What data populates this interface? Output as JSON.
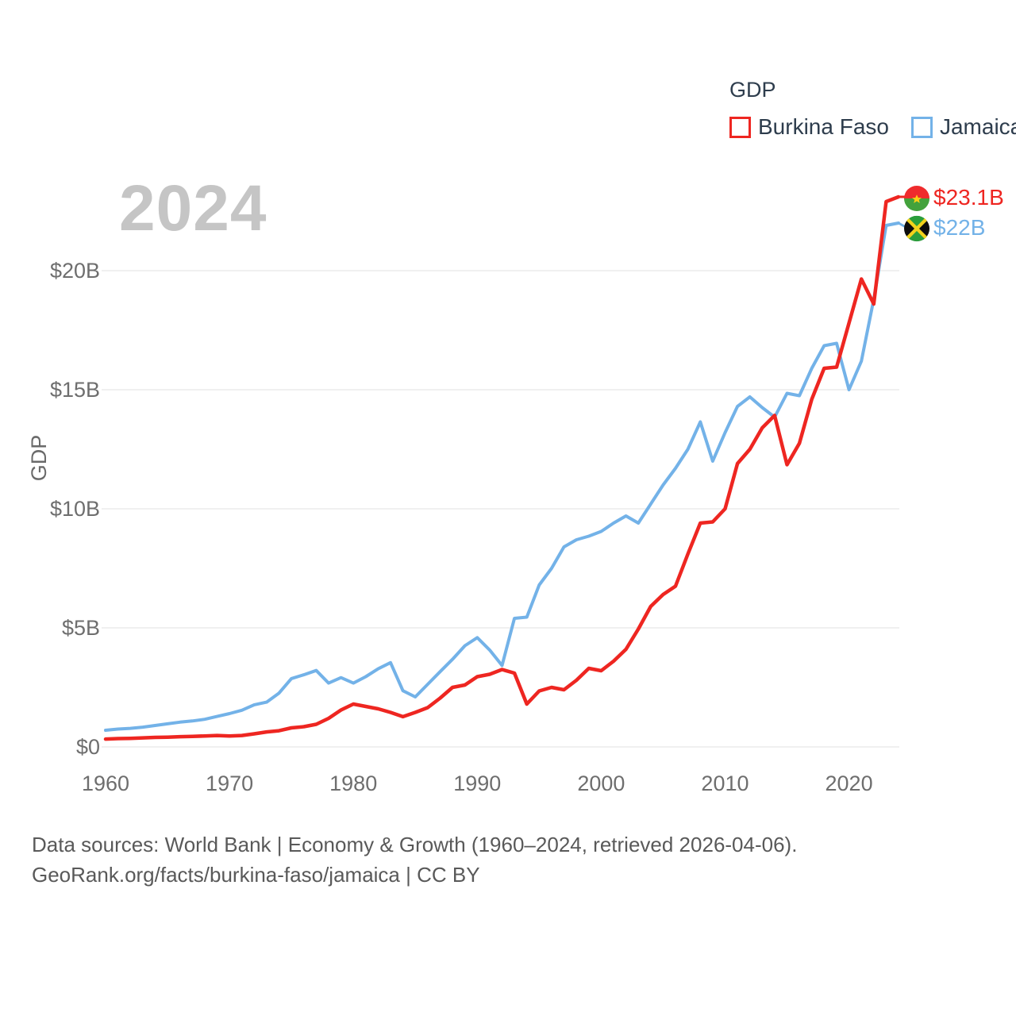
{
  "watermark": {
    "text": "2024"
  },
  "legend": {
    "title": "GDP",
    "items": [
      {
        "label": "Burkina Faso",
        "color": "#ee2621"
      },
      {
        "label": "Jamaica",
        "color": "#73b2e8"
      }
    ]
  },
  "end_labels": [
    {
      "series": "Burkina Faso",
      "label": "$23.1B",
      "color": "#ee2621",
      "flag": "burkina-faso-flag"
    },
    {
      "series": "Jamaica",
      "label": "$22B",
      "color": "#73b2e8",
      "flag": "jamaica-flag"
    }
  ],
  "footer": {
    "line1": "Data sources: World Bank | Economy & Growth (1960–2024, retrieved 2026-04-06).",
    "line2": "GeoRank.org/facts/burkina-faso/jamaica | CC BY"
  },
  "chart_data": {
    "type": "line",
    "title": "GDP",
    "ylabel": "GDP",
    "xlabel": "",
    "xlim": [
      1960,
      2024
    ],
    "ylim": [
      0,
      23.5
    ],
    "grid": "horizontal",
    "legend_position": "top-right",
    "x_ticks": [
      1960,
      1970,
      1980,
      1990,
      2000,
      2010,
      2020
    ],
    "y_ticks": [
      {
        "value": 0,
        "label": "$0"
      },
      {
        "value": 5,
        "label": "$5B"
      },
      {
        "value": 10,
        "label": "$10B"
      },
      {
        "value": 15,
        "label": "$15B"
      },
      {
        "value": 20,
        "label": "$20B"
      }
    ],
    "x": [
      1960,
      1961,
      1962,
      1963,
      1964,
      1965,
      1966,
      1967,
      1968,
      1969,
      1970,
      1971,
      1972,
      1973,
      1974,
      1975,
      1976,
      1977,
      1978,
      1979,
      1980,
      1981,
      1982,
      1983,
      1984,
      1985,
      1986,
      1987,
      1988,
      1989,
      1990,
      1991,
      1992,
      1993,
      1994,
      1995,
      1996,
      1997,
      1998,
      1999,
      2000,
      2001,
      2002,
      2003,
      2004,
      2005,
      2006,
      2007,
      2008,
      2009,
      2010,
      2011,
      2012,
      2013,
      2014,
      2015,
      2016,
      2017,
      2018,
      2019,
      2020,
      2021,
      2022,
      2023,
      2024
    ],
    "series": [
      {
        "name": "Burkina Faso",
        "color": "#ee2621",
        "unit": "billion USD",
        "final_value_label": "$23.1B",
        "values": [
          0.33,
          0.35,
          0.36,
          0.38,
          0.4,
          0.41,
          0.43,
          0.44,
          0.46,
          0.48,
          0.46,
          0.48,
          0.55,
          0.63,
          0.68,
          0.8,
          0.85,
          0.95,
          1.2,
          1.55,
          1.8,
          1.7,
          1.6,
          1.45,
          1.27,
          1.45,
          1.65,
          2.05,
          2.5,
          2.6,
          2.95,
          3.05,
          3.25,
          3.1,
          1.8,
          2.35,
          2.5,
          2.4,
          2.8,
          3.3,
          3.2,
          3.6,
          4.1,
          4.95,
          5.9,
          6.4,
          6.75,
          8.1,
          9.4,
          9.45,
          10.0,
          11.9,
          12.5,
          13.4,
          13.92,
          11.85,
          12.75,
          14.6,
          15.9,
          15.95,
          17.8,
          19.65,
          18.6,
          22.9,
          23.1
        ]
      },
      {
        "name": "Jamaica",
        "color": "#73b2e8",
        "unit": "billion USD",
        "final_value_label": "$22B",
        "values": [
          0.7,
          0.75,
          0.78,
          0.83,
          0.9,
          0.97,
          1.04,
          1.09,
          1.16,
          1.28,
          1.4,
          1.54,
          1.77,
          1.88,
          2.26,
          2.87,
          3.03,
          3.21,
          2.68,
          2.91,
          2.68,
          2.95,
          3.28,
          3.54,
          2.36,
          2.1,
          2.63,
          3.16,
          3.68,
          4.25,
          4.59,
          4.07,
          3.42,
          5.4,
          5.45,
          6.8,
          7.5,
          8.4,
          8.7,
          8.85,
          9.05,
          9.4,
          9.7,
          9.4,
          10.2,
          11.0,
          11.7,
          12.5,
          13.65,
          12.0,
          13.2,
          14.3,
          14.7,
          14.25,
          13.85,
          14.85,
          14.75,
          15.9,
          16.85,
          16.95,
          15.0,
          16.2,
          18.8,
          21.9,
          22.0
        ]
      }
    ]
  }
}
